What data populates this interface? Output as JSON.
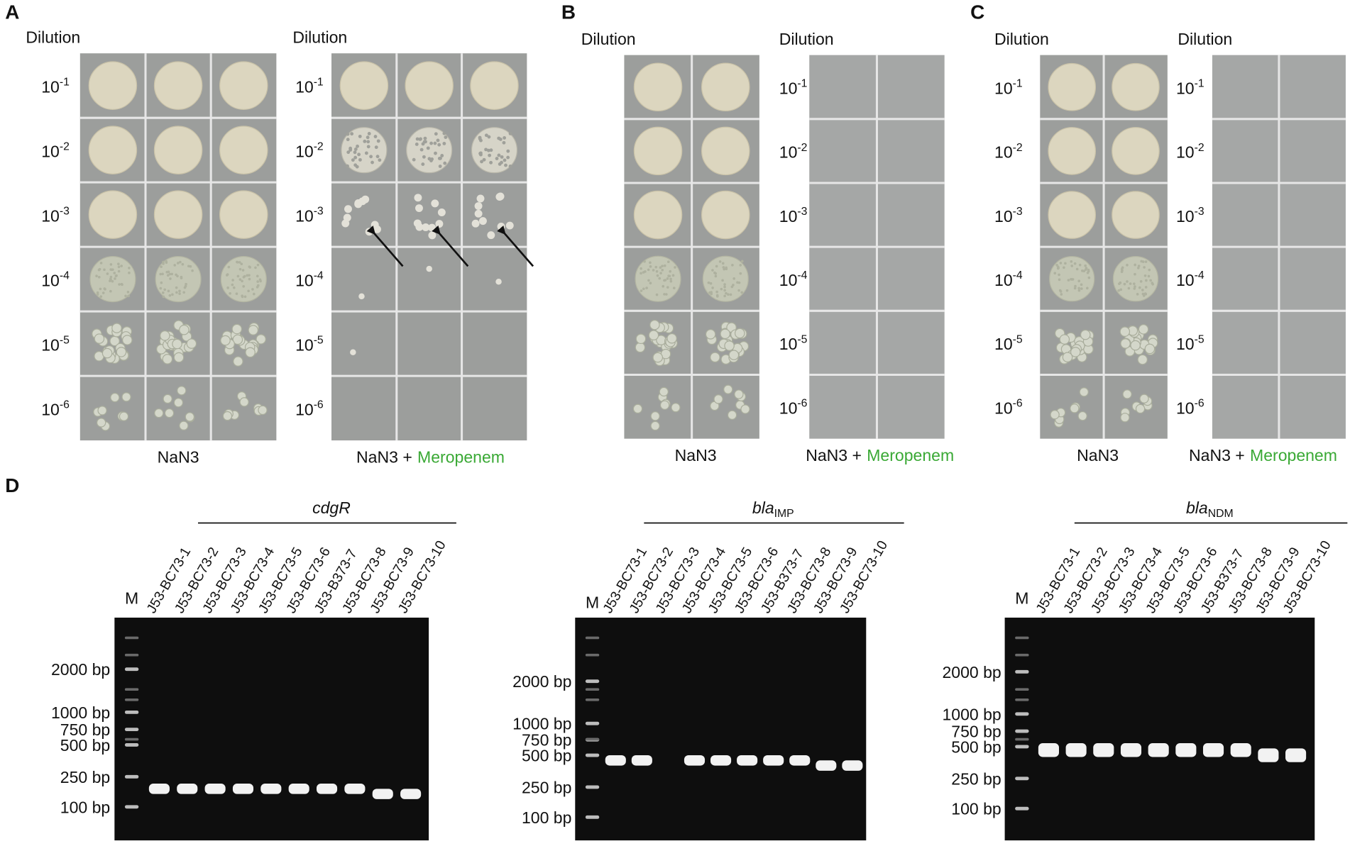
{
  "panel_a": {
    "letter": "A",
    "left": {
      "heading": "Dilution",
      "dilutions": [
        {
          "base": "10",
          "exp": "-1"
        },
        {
          "base": "10",
          "exp": "-2"
        },
        {
          "base": "10",
          "exp": "-3"
        },
        {
          "base": "10",
          "exp": "-4"
        },
        {
          "base": "10",
          "exp": "-5"
        },
        {
          "base": "10",
          "exp": "-6"
        }
      ],
      "label": "NaN3"
    },
    "right": {
      "heading": "Dilution",
      "dilutions": [
        {
          "base": "10",
          "exp": "-1"
        },
        {
          "base": "10",
          "exp": "-2"
        },
        {
          "base": "10",
          "exp": "-3"
        },
        {
          "base": "10",
          "exp": "-4"
        },
        {
          "base": "10",
          "exp": "-5"
        },
        {
          "base": "10",
          "exp": "-6"
        }
      ],
      "label": "NaN3 +",
      "drug": "Meropenem"
    }
  },
  "panel_b": {
    "letter": "B",
    "left": {
      "heading": "Dilution",
      "label": "NaN3"
    },
    "right": {
      "heading": "Dilution",
      "dilutions": [
        {
          "base": "10",
          "exp": "-1"
        },
        {
          "base": "10",
          "exp": "-2"
        },
        {
          "base": "10",
          "exp": "-3"
        },
        {
          "base": "10",
          "exp": "-4"
        },
        {
          "base": "10",
          "exp": "-5"
        },
        {
          "base": "10",
          "exp": "-6"
        }
      ],
      "label": "NaN3 +",
      "drug": "Meropenem"
    }
  },
  "panel_c": {
    "letter": "C",
    "left": {
      "heading": "Dilution",
      "dilutions": [
        {
          "base": "10",
          "exp": "-1"
        },
        {
          "base": "10",
          "exp": "-2"
        },
        {
          "base": "10",
          "exp": "-3"
        },
        {
          "base": "10",
          "exp": "-4"
        },
        {
          "base": "10",
          "exp": "-5"
        },
        {
          "base": "10",
          "exp": "-6"
        }
      ],
      "label": "NaN3"
    },
    "right": {
      "heading": "Dilution",
      "dilutions": [
        {
          "base": "10",
          "exp": "-1"
        },
        {
          "base": "10",
          "exp": "-2"
        },
        {
          "base": "10",
          "exp": "-3"
        },
        {
          "base": "10",
          "exp": "-4"
        },
        {
          "base": "10",
          "exp": "-5"
        },
        {
          "base": "10",
          "exp": "-6"
        }
      ],
      "label": "NaN3 +",
      "drug": "Meropenem"
    }
  },
  "panel_d": {
    "letter": "D",
    "gels": [
      {
        "gene": {
          "main": "cdgR"
        },
        "marker": "M",
        "lanes": [
          "J53-BC73-1",
          "J53-BC73-2",
          "J53-BC73-3",
          "J53-BC73-4",
          "J53-BC73-5",
          "J53-BC73-6",
          "J53-B373-7",
          "J53-BC73-8",
          "J53-BC73-9",
          "J53-BC73-10"
        ],
        "ladder": [
          "2000 bp",
          "1000 bp",
          "750 bp",
          "500 bp",
          "250 bp",
          "100 bp"
        ]
      },
      {
        "gene": {
          "main": "bla",
          "sub": "IMP"
        },
        "marker": "M",
        "lanes": [
          "J53-BC73-1",
          "J53-BC73-2",
          "J53-BC73-3",
          "J53-BC73-4",
          "J53-BC73-5",
          "J53-BC73-6",
          "J53-B373-7",
          "J53-BC73-8",
          "J53-BC73-9",
          "J53-BC73-10"
        ],
        "ladder": [
          "2000 bp",
          "1000 bp",
          "750 bp",
          "500 bp",
          "250 bp",
          "100 bp"
        ]
      },
      {
        "gene": {
          "main": "bla",
          "sub": "NDM"
        },
        "marker": "M",
        "lanes": [
          "J53-BC73-1",
          "J53-BC73-2",
          "J53-BC73-3",
          "J53-BC73-4",
          "J53-BC73-5",
          "J53-BC73-6",
          "J53-B373-7",
          "J53-BC73-8",
          "J53-BC73-9",
          "J53-BC73-10"
        ],
        "ladder": [
          "2000 bp",
          "1000 bp",
          "750 bp",
          "500 bp",
          "250 bp",
          "100 bp"
        ]
      }
    ]
  }
}
